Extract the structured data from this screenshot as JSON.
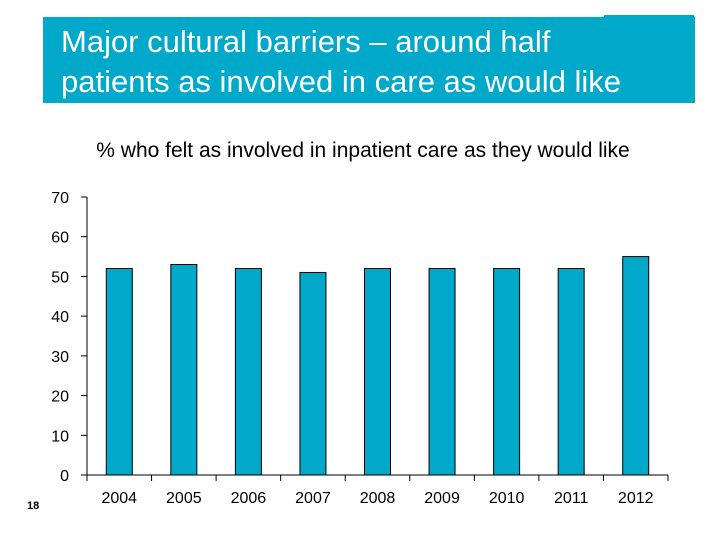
{
  "slide": {
    "title_line1": "Major cultural barriers – around half",
    "title_line2": "patients as involved in care as would like",
    "slide_number": "18",
    "accent_color": "#00A9C9"
  },
  "chart_data": {
    "type": "bar",
    "title": "% who felt as involved in inpatient care as they would like",
    "categories": [
      "2004",
      "2005",
      "2006",
      "2007",
      "2008",
      "2009",
      "2010",
      "2011",
      "2012"
    ],
    "values": [
      52,
      53,
      52,
      51,
      52,
      52,
      52,
      52,
      55
    ],
    "xlabel": "",
    "ylabel": "",
    "ylim": [
      0,
      70
    ],
    "yticks": [
      0,
      10,
      20,
      30,
      40,
      50,
      60,
      70
    ],
    "grid": false,
    "legend": "none",
    "bar_color": "#00A9C9",
    "bar_outline_color": "#000000"
  }
}
